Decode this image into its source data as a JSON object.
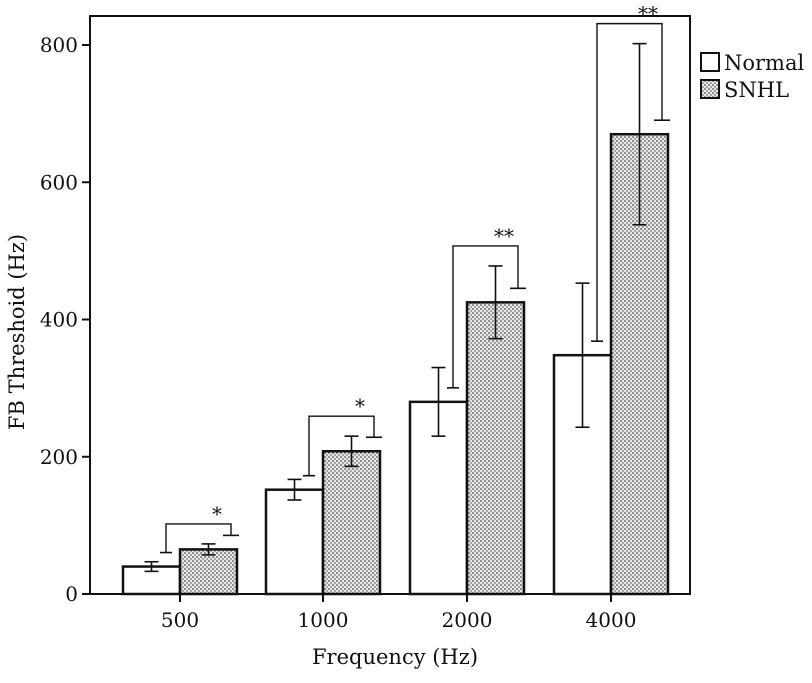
{
  "chart_data": {
    "type": "bar",
    "title": "",
    "xlabel": "Frequency (Hz)",
    "ylabel": "FB Threshoid (Hz)",
    "ylim": [
      0,
      800
    ],
    "yticks": [
      0,
      200,
      400,
      600,
      800
    ],
    "categories": [
      "500",
      "1000",
      "2000",
      "4000"
    ],
    "legend_position": "top-right",
    "series": [
      {
        "name": "Normal",
        "values": [
          40,
          152,
          280,
          348
        ],
        "error": [
          7,
          15,
          50,
          105
        ],
        "fill": "#ffffff",
        "pattern": "none"
      },
      {
        "name": "SNHL",
        "values": [
          65,
          208,
          425,
          670
        ],
        "error": [
          8,
          22,
          53,
          132
        ],
        "fill": "#d0d0d0",
        "pattern": "dots"
      }
    ],
    "significance": [
      {
        "category": "500",
        "label": "*"
      },
      {
        "category": "1000",
        "label": "*"
      },
      {
        "category": "2000",
        "label": "**"
      },
      {
        "category": "4000",
        "label": "**"
      }
    ],
    "grid": false
  }
}
